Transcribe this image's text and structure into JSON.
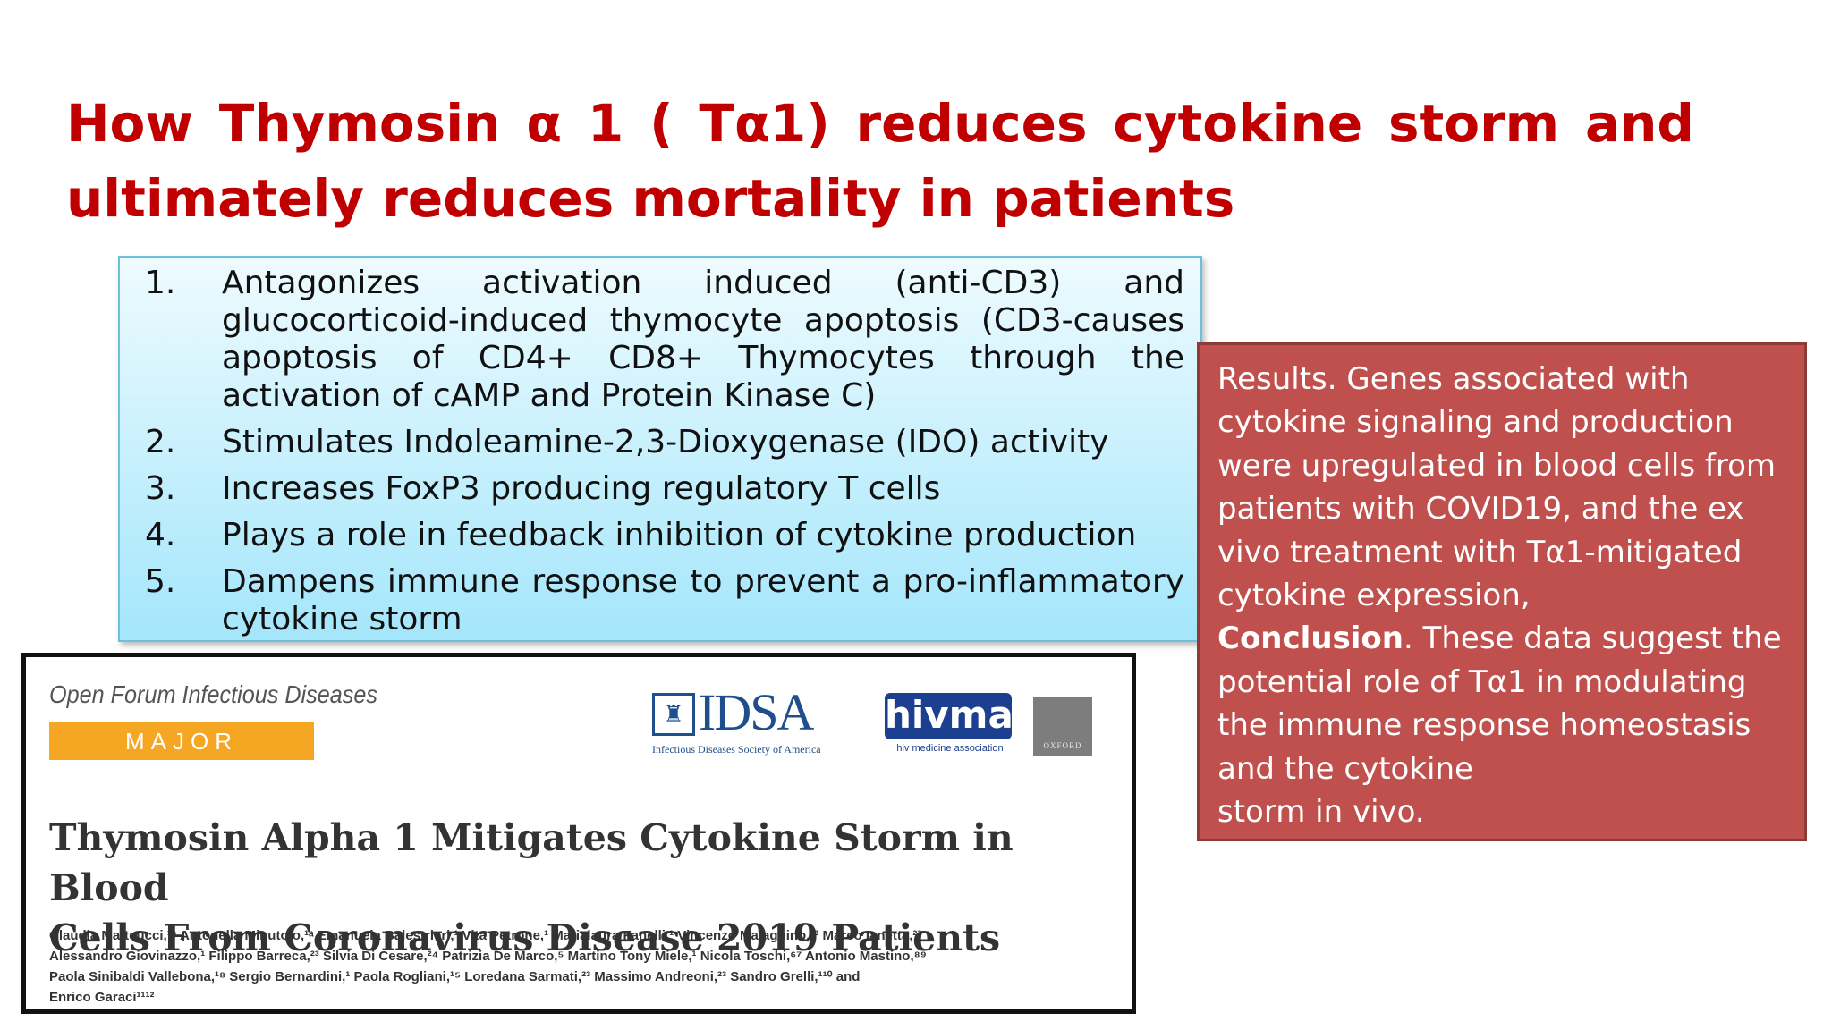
{
  "slide": {
    "title_words": [
      "How",
      "Thymosin",
      "α",
      "1",
      "(",
      "Tα1)",
      "reduces",
      "cytokine",
      "storm",
      "and"
    ],
    "title_line2": "ultimately reduces mortality in patients"
  },
  "points": [
    {
      "num": "1.",
      "text": "Antagonizes activation induced (anti-CD3) and glucocorticoid-induced thymocyte apoptosis (CD3-causes apoptosis of CD4+ CD8+ Thymocytes through the activation of cAMP and Protein Kinase C)"
    },
    {
      "num": "2.",
      "text": "Stimulates Indoleamine-2,3-Dioxygenase (IDO) activity"
    },
    {
      "num": "3.",
      "text": "Increases FoxP3 producing regulatory T cells"
    },
    {
      "num": "4.",
      "text": "Plays a role in feedback inhibition of cytokine production"
    },
    {
      "num": "5.",
      "text": "Dampens immune response to prevent a pro-inflammatory cytokine storm"
    }
  ],
  "results": {
    "results_text": "Results. Genes associated with cytokine signaling and production were upregulated in blood cells from patients with COVID19, and the ex vivo treatment with Tα1-mitigated cytokine expression,",
    "conclusion_label": "Conclusion",
    "conclusion_text": ". These data suggest the potential role of Tα1 in modulating the immune response homeostasis and the cytokine",
    "conclusion_end": "storm in vivo."
  },
  "article": {
    "journal": "Open Forum Infectious Diseases",
    "badge": "MAJOR ARTICLE",
    "idsa_name": "IDSA",
    "idsa_sub": "Infectious Diseases Society of America",
    "hivma_name": "hivma",
    "hivma_sub": "hiv medicine association",
    "oxford": "OXFORD",
    "title_line1": "Thymosin Alpha 1 Mitigates Cytokine Storm in Blood",
    "title_line2": "Cells From Coronavirus Disease 2019 Patients",
    "authors": [
      "Claudia Matteucci,¹ᵃ Antonella Minutolo,¹ᵃ Emanuela Balestrieri,¹ Vita Petrone,¹ Marialaura Fanelli,¹ Vincenzo Malagnino,²³ Marco Ianetta,²³",
      "Alessandro Giovinazzo,¹ Filippo Barreca,²³ Silvia Di Cesare,²⁴ Patrizia De Marco,⁵ Martino Tony Miele,¹ Nicola Toschi,⁶⁷ Antonio Mastino,⁸⁹",
      "Paola Sinibaldi Vallebona,¹⁸ Sergio Bernardini,¹ Paola Rogliani,¹⁵ Loredana Sarmati,²³ Massimo Andreoni,²³ Sandro Grelli,¹¹⁰ and",
      "Enrico Garaci¹¹¹²"
    ]
  }
}
